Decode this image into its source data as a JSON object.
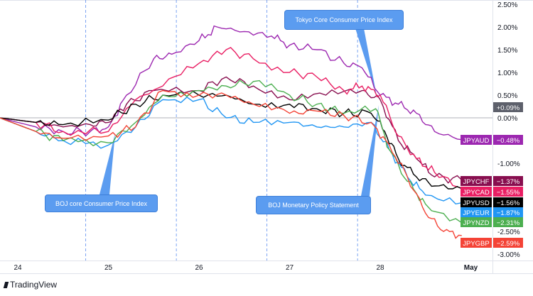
{
  "chart_data": {
    "type": "line",
    "title": "",
    "xlabel": "",
    "ylabel": "",
    "x_ticks": [
      {
        "label": "24",
        "x": 24
      },
      {
        "label": "25",
        "x": 25
      },
      {
        "label": "26",
        "x": 26
      },
      {
        "label": "27",
        "x": 27
      },
      {
        "label": "28",
        "x": 28
      },
      {
        "label": "May",
        "x": 29
      }
    ],
    "y_ticks": [
      "2.50%",
      "2.00%",
      "1.50%",
      "1.00%",
      "0.50%",
      "0.00%",
      "-1.00%",
      "-2.50%",
      "-3.00%"
    ],
    "y_tick_values": [
      2.5,
      2.0,
      1.5,
      1.0,
      0.5,
      0.0,
      -1.0,
      -2.5,
      -3.0
    ],
    "ylim": [
      -3.1,
      2.6
    ],
    "xlim": [
      23.8,
      29.3
    ],
    "current_marker": "+0.09%",
    "event_lines_x": [
      24.75,
      25.75,
      26.75,
      27.75
    ],
    "series": [
      {
        "name": "JPYAUD",
        "color": "#9c27b0",
        "last": "−0.48%",
        "x": [
          23.8,
          24.2,
          24.5,
          24.8,
          25.0,
          25.2,
          25.5,
          25.7,
          26.0,
          26.2,
          26.5,
          26.8,
          27.0,
          27.3,
          27.6,
          27.8,
          28.0,
          28.2,
          28.4,
          28.6,
          28.9
        ],
        "values": [
          0,
          -0.2,
          -0.3,
          -0.3,
          -0.2,
          0.5,
          1.3,
          1.4,
          1.7,
          2.0,
          1.9,
          1.8,
          1.6,
          1.5,
          1.2,
          1.1,
          0.5,
          0.3,
          0.1,
          -0.3,
          -0.48
        ]
      },
      {
        "name": "JPYCHF",
        "color": "#880e4f",
        "last": "−1.37%",
        "x": [
          23.8,
          24.2,
          24.5,
          24.8,
          25.0,
          25.2,
          25.5,
          26.0,
          26.3,
          26.6,
          27.0,
          27.4,
          27.8,
          28.0,
          28.2,
          28.4,
          28.6,
          28.9
        ],
        "values": [
          0,
          -0.1,
          -0.2,
          -0.15,
          -0.1,
          0.3,
          0.6,
          0.6,
          0.9,
          0.7,
          0.4,
          0.5,
          0.6,
          0.4,
          -0.5,
          -0.9,
          -1.3,
          -1.37
        ]
      },
      {
        "name": "JPYCAD",
        "color": "#e91e63",
        "last": "−1.55%",
        "x": [
          23.8,
          24.2,
          24.5,
          25.0,
          25.3,
          25.6,
          26.0,
          26.3,
          26.6,
          27.0,
          27.3,
          27.6,
          27.8,
          28.0,
          28.2,
          28.4,
          28.6,
          28.9
        ],
        "values": [
          0,
          -0.1,
          -0.3,
          -0.3,
          0.4,
          0.7,
          1.2,
          1.5,
          1.3,
          1.0,
          0.9,
          0.6,
          0.7,
          0.5,
          -0.4,
          -0.9,
          -1.2,
          -1.55
        ]
      },
      {
        "name": "JPYUSD",
        "color": "#000000",
        "last": "−1.56%",
        "x": [
          23.8,
          24.2,
          24.5,
          25.0,
          25.3,
          25.6,
          26.0,
          26.3,
          26.6,
          27.0,
          27.3,
          27.6,
          27.9,
          28.05,
          28.2,
          28.4,
          28.6,
          28.9
        ],
        "values": [
          0,
          -0.1,
          -0.15,
          -0.05,
          0.3,
          0.5,
          0.5,
          0.5,
          0.3,
          0.3,
          0.2,
          0.1,
          0.1,
          -0.3,
          -0.9,
          -1.3,
          -1.5,
          -1.56
        ]
      },
      {
        "name": "JPYEUR",
        "color": "#2196f3",
        "last": "−1.87%",
        "x": [
          23.8,
          24.2,
          24.5,
          25.0,
          25.3,
          25.6,
          26.0,
          26.3,
          26.6,
          27.0,
          27.3,
          27.6,
          27.9,
          28.1,
          28.3,
          28.5,
          28.9
        ],
        "values": [
          0,
          -0.3,
          -0.5,
          -0.6,
          -0.2,
          0.4,
          0.4,
          0.0,
          -0.1,
          -0.1,
          -0.2,
          -0.2,
          -0.1,
          -0.7,
          -1.3,
          -1.7,
          -1.87
        ]
      },
      {
        "name": "JPYNZD",
        "color": "#4caf50",
        "last": "−2.31%",
        "x": [
          23.8,
          24.2,
          24.5,
          25.0,
          25.3,
          25.6,
          26.0,
          26.3,
          26.6,
          27.0,
          27.3,
          27.6,
          27.95,
          28.1,
          28.3,
          28.5,
          28.9
        ],
        "values": [
          0,
          -0.3,
          -0.5,
          -0.55,
          -0.1,
          0.5,
          0.6,
          0.7,
          0.8,
          0.5,
          0.3,
          0.1,
          0.2,
          -0.7,
          -1.4,
          -1.9,
          -2.31
        ]
      },
      {
        "name": "JPYGBP",
        "color": "#f44336",
        "last": "−2.59%",
        "x": [
          23.8,
          24.2,
          24.5,
          25.0,
          25.3,
          25.6,
          26.0,
          26.3,
          26.6,
          27.0,
          27.3,
          27.6,
          27.9,
          28.1,
          28.3,
          28.5,
          28.7,
          28.9
        ],
        "values": [
          0,
          -0.3,
          -0.45,
          -0.4,
          -0.2,
          0.6,
          0.5,
          0.5,
          0.3,
          0.1,
          0.15,
          0.05,
          -0.1,
          -0.6,
          -1.3,
          -2.1,
          -2.5,
          -2.59
        ]
      }
    ],
    "annotations": [
      "Tokyo Core Consumer Price Index",
      "BOJ core Consumer Price Index",
      "BOJ Monetary Policy Statement"
    ]
  },
  "branding": "TradingView"
}
